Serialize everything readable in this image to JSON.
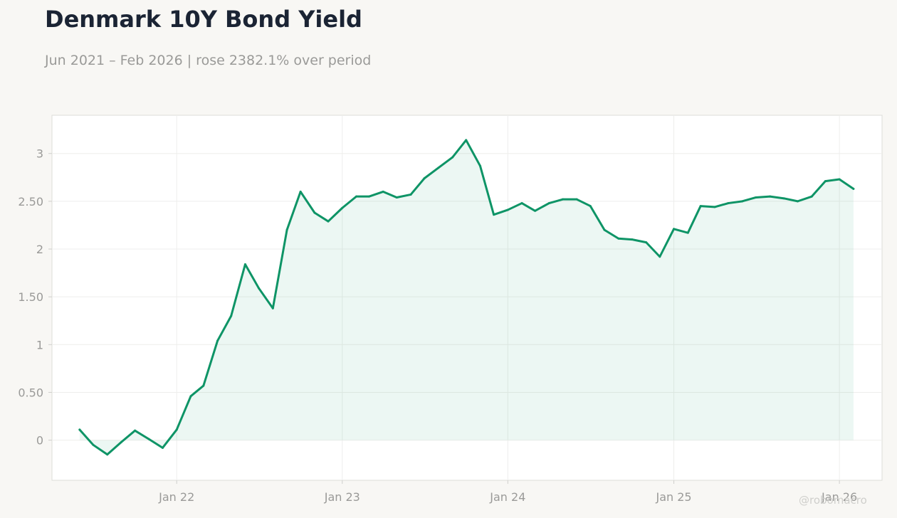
{
  "title": "Denmark 10Y Bond Yield",
  "subtitle": "Jun 2021 – Feb 2026 | rose 2382.1% over period",
  "watermark": "@robomacro",
  "colors": {
    "line": "#0e9466",
    "fill": "#0e9466",
    "background": "#f8f7f4",
    "plot_background": "#ffffff",
    "grid": "#eeeeec",
    "axis_text": "#9a9a98",
    "title": "#1b2434"
  },
  "chart_data": {
    "type": "area",
    "title": "Denmark 10Y Bond Yield",
    "subtitle": "Jun 2021 – Feb 2026 | rose 2382.1% over period",
    "xlabel": "",
    "ylabel": "",
    "x_range": [
      "2021-04-01",
      "2026-04-05"
    ],
    "ylim": [
      -0.42,
      3.4
    ],
    "grid": true,
    "legend": "none",
    "x_ticks": [
      {
        "date": "2022-01-01",
        "label": "Jan 22"
      },
      {
        "date": "2023-01-01",
        "label": "Jan 23"
      },
      {
        "date": "2024-01-01",
        "label": "Jan 24"
      },
      {
        "date": "2025-01-01",
        "label": "Jan 25"
      },
      {
        "date": "2026-01-01",
        "label": "Jan 26"
      }
    ],
    "y_ticks": [
      {
        "value": 0,
        "label": "0"
      },
      {
        "value": 0.5,
        "label": "0.50"
      },
      {
        "value": 1,
        "label": "1"
      },
      {
        "value": 1.5,
        "label": "1.50"
      },
      {
        "value": 2,
        "label": "2"
      },
      {
        "value": 2.5,
        "label": "2.50"
      },
      {
        "value": 3,
        "label": "3"
      }
    ],
    "series": [
      {
        "x": [
          "2021-06-01",
          "2021-07-01",
          "2021-08-01",
          "2021-09-01",
          "2021-10-01",
          "2021-11-01",
          "2021-12-01",
          "2022-01-01",
          "2022-02-01",
          "2022-03-01",
          "2022-04-01",
          "2022-05-01",
          "2022-06-01",
          "2022-07-01",
          "2022-08-01",
          "2022-09-01",
          "2022-10-01",
          "2022-11-01",
          "2022-12-01",
          "2023-01-01",
          "2023-02-01",
          "2023-03-01",
          "2023-04-01",
          "2023-05-01",
          "2023-06-01",
          "2023-07-01",
          "2023-08-01",
          "2023-09-01",
          "2023-10-01",
          "2023-11-01",
          "2023-12-01",
          "2024-01-01",
          "2024-02-01",
          "2024-03-01",
          "2024-04-01",
          "2024-05-01",
          "2024-06-01",
          "2024-07-01",
          "2024-08-01",
          "2024-09-01",
          "2024-10-01",
          "2024-11-01",
          "2024-12-01",
          "2025-01-01",
          "2025-02-01",
          "2025-03-01",
          "2025-04-01",
          "2025-05-01",
          "2025-06-01",
          "2025-07-01",
          "2025-08-01",
          "2025-09-01",
          "2025-10-01",
          "2025-11-01",
          "2025-12-01",
          "2026-01-01",
          "2026-02-01"
        ],
        "values": [
          0.11,
          -0.05,
          -0.15,
          -0.02,
          0.1,
          0.01,
          -0.08,
          0.11,
          0.46,
          0.57,
          1.04,
          1.3,
          1.84,
          1.59,
          1.38,
          2.2,
          2.6,
          2.38,
          2.29,
          2.43,
          2.55,
          2.55,
          2.6,
          2.54,
          2.57,
          2.74,
          2.85,
          2.96,
          3.14,
          2.87,
          2.36,
          2.41,
          2.48,
          2.4,
          2.48,
          2.52,
          2.52,
          2.45,
          2.2,
          2.11,
          2.1,
          2.07,
          1.92,
          2.21,
          2.17,
          2.45,
          2.44,
          2.48,
          2.5,
          2.54,
          2.55,
          2.53,
          2.5,
          2.55,
          2.71,
          2.73,
          2.63
        ]
      }
    ]
  }
}
